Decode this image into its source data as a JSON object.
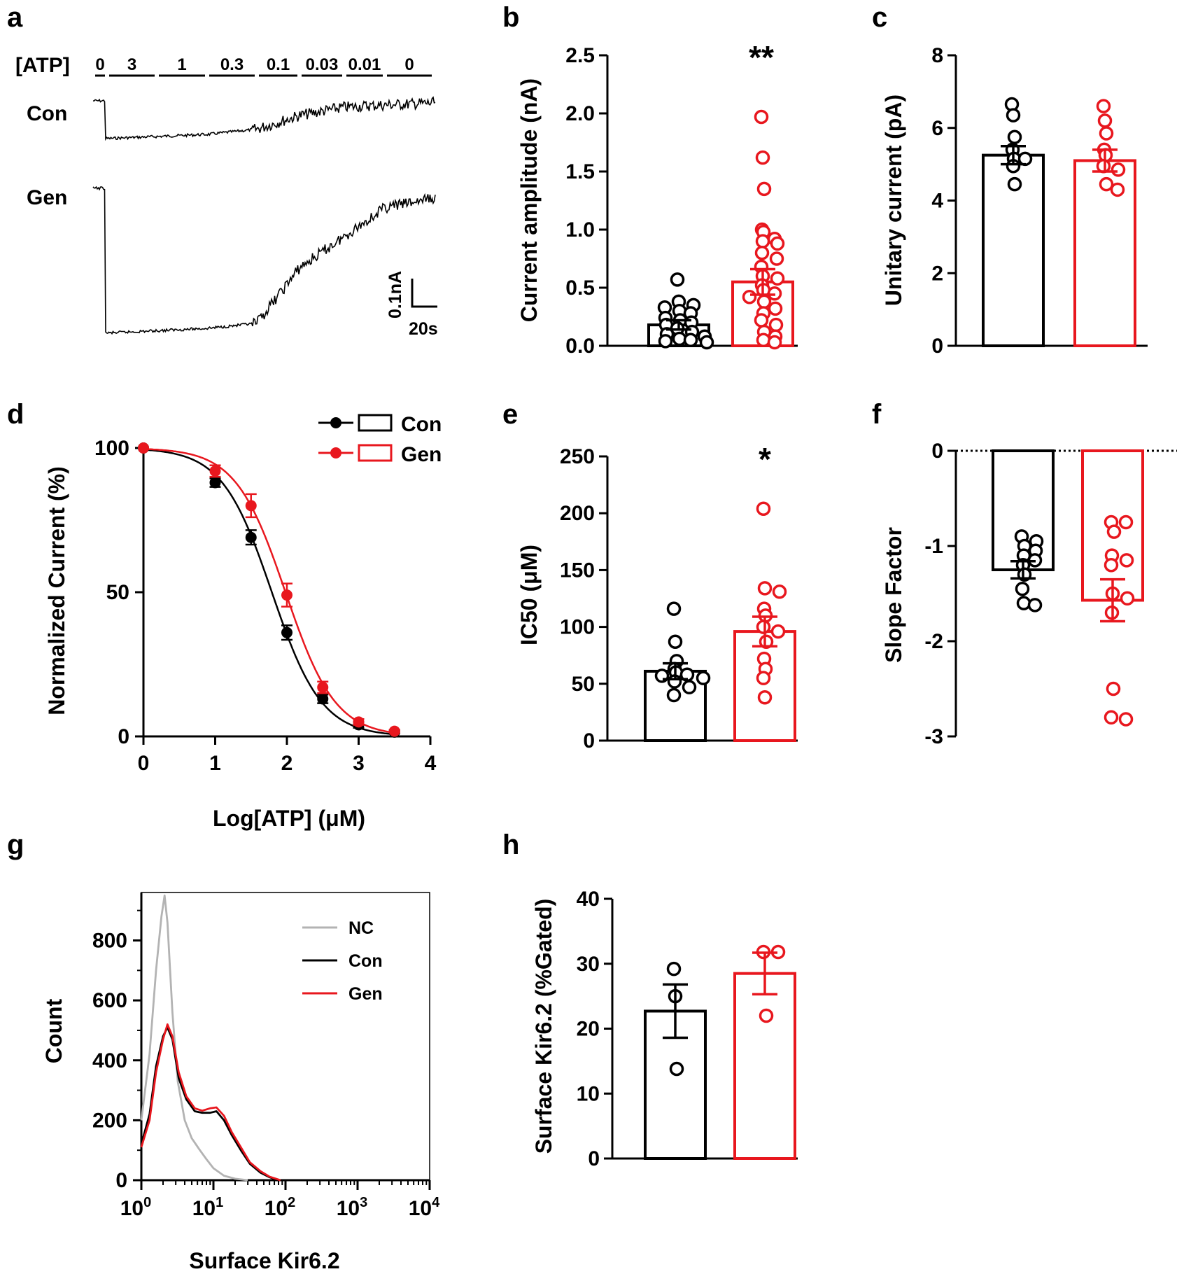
{
  "colors": {
    "con": "#000000",
    "gen": "#e8171e",
    "nc": "#b3b3b3"
  },
  "panel_letters": [
    "a",
    "b",
    "c",
    "d",
    "e",
    "f",
    "g",
    "h"
  ],
  "chart_data": [
    {
      "panel": "a",
      "type": "trace",
      "atp_label": "[ATP]",
      "atp_segments": [
        "0",
        "3",
        "1",
        "0.3",
        "0.1",
        "0.03",
        "0.01",
        "0"
      ],
      "traces": [
        {
          "name": "Con",
          "baseline_nA": 0.0,
          "steps_nA": [
            -0.02,
            -0.2,
            -0.19,
            -0.18,
            -0.155,
            -0.09,
            -0.05,
            -0.04,
            -0.03
          ]
        },
        {
          "name": "Gen",
          "baseline_nA": 0.0,
          "steps_nA": [
            -0.02,
            -0.62,
            -0.61,
            -0.6,
            -0.58,
            -0.35,
            -0.22,
            -0.1,
            -0.06
          ]
        }
      ],
      "scale_bar": {
        "current": "0.1nA",
        "time": "20s"
      }
    },
    {
      "panel": "b",
      "type": "bar",
      "ylabel": "Current amplitude (nA)",
      "ylim": [
        0,
        2.5
      ],
      "yticks": [
        "0.0",
        "0.5",
        "1.0",
        "1.5",
        "2.0",
        "2.5"
      ],
      "ytick_values": [
        0,
        0.5,
        1.0,
        1.5,
        2.0,
        2.5
      ],
      "significance": "**",
      "groups": [
        {
          "name": "Con",
          "mean": 0.18,
          "sem": 0.04,
          "points": [
            0.57,
            0.38,
            0.35,
            0.33,
            0.3,
            0.28,
            0.24,
            0.22,
            0.2,
            0.18,
            0.15,
            0.12,
            0.1,
            0.08,
            0.06,
            0.05,
            0.04,
            0.03
          ]
        },
        {
          "name": "Gen",
          "mean": 0.55,
          "sem": 0.11,
          "points": [
            1.97,
            1.62,
            1.35,
            1.0,
            0.98,
            0.92,
            0.9,
            0.88,
            0.8,
            0.75,
            0.68,
            0.6,
            0.58,
            0.52,
            0.48,
            0.45,
            0.42,
            0.38,
            0.32,
            0.28,
            0.22,
            0.18,
            0.12,
            0.08,
            0.05,
            0.03
          ]
        }
      ]
    },
    {
      "panel": "c",
      "type": "bar",
      "ylabel": "Unitary current (pA)",
      "ylim": [
        0,
        8
      ],
      "yticks": [
        "0",
        "2",
        "4",
        "6",
        "8"
      ],
      "ytick_values": [
        0,
        2,
        4,
        6,
        8
      ],
      "groups": [
        {
          "name": "Con",
          "mean": 5.25,
          "sem": 0.25,
          "points": [
            6.65,
            6.35,
            5.75,
            5.4,
            5.15,
            5.15,
            4.95,
            4.45
          ]
        },
        {
          "name": "Gen",
          "mean": 5.1,
          "sem": 0.3,
          "points": [
            6.6,
            6.2,
            5.85,
            5.4,
            5.25,
            4.95,
            4.85,
            4.45,
            4.3
          ]
        }
      ]
    },
    {
      "panel": "d",
      "type": "line",
      "xlabel": "Log[ATP] (μM)",
      "ylabel": "Normalized Current (%)",
      "xlim": [
        0,
        4
      ],
      "ylim": [
        0,
        100
      ],
      "xticks": [
        "0",
        "1",
        "2",
        "3",
        "4"
      ],
      "xtick_values": [
        0,
        1,
        2,
        3,
        4
      ],
      "yticks": [
        "0",
        "50",
        "100"
      ],
      "ytick_values": [
        0,
        50,
        100
      ],
      "legend": [
        "Con",
        "Gen"
      ],
      "series": [
        {
          "name": "Con",
          "x": [
            0,
            1,
            1.5,
            2,
            2.5,
            3,
            3.5
          ],
          "y": [
            100,
            88,
            69,
            36,
            13,
            4,
            1.5
          ],
          "err": [
            0,
            1.5,
            2.5,
            2.5,
            1.5,
            1,
            0.5
          ],
          "ic50_log": 1.79,
          "hill": 1.25
        },
        {
          "name": "Gen",
          "x": [
            0,
            1,
            1.5,
            2,
            2.5,
            3,
            3.5
          ],
          "y": [
            100,
            92,
            80,
            49,
            17,
            5,
            1.8
          ],
          "err": [
            0,
            2,
            4,
            4,
            2,
            1,
            0.5
          ],
          "ic50_log": 1.98,
          "hill": 1.25
        }
      ]
    },
    {
      "panel": "e",
      "type": "bar",
      "ylabel": "IC50 (μM)",
      "ylim": [
        0,
        250
      ],
      "yticks": [
        "0",
        "50",
        "100",
        "150",
        "200",
        "250"
      ],
      "ytick_values": [
        0,
        50,
        100,
        150,
        200,
        250
      ],
      "significance": "*",
      "groups": [
        {
          "name": "Con",
          "mean": 61,
          "sem": 7,
          "points": [
            116,
            87,
            70,
            63,
            60,
            58,
            57,
            55,
            52,
            47,
            40
          ]
        },
        {
          "name": "Gen",
          "mean": 96,
          "sem": 13,
          "points": [
            204,
            134,
            131,
            116,
            110,
            100,
            96,
            87,
            72,
            63,
            55,
            38
          ]
        }
      ]
    },
    {
      "panel": "f",
      "type": "bar",
      "ylabel": "Slope Factor",
      "ylim": [
        -3,
        0
      ],
      "yticks": [
        "-3",
        "-2",
        "-1",
        "0"
      ],
      "ytick_values": [
        -3,
        -2,
        -1,
        0
      ],
      "groups": [
        {
          "name": "Con",
          "mean": -1.25,
          "sem": 0.09,
          "points": [
            -0.9,
            -0.95,
            -1.0,
            -1.05,
            -1.1,
            -1.15,
            -1.2,
            -1.3,
            -1.45,
            -1.6,
            -1.62
          ]
        },
        {
          "name": "Gen",
          "mean": -1.57,
          "sem": 0.22,
          "points": [
            -0.75,
            -0.75,
            -0.85,
            -1.1,
            -1.15,
            -1.2,
            -1.5,
            -1.55,
            -1.7,
            -2.5,
            -2.8,
            -2.82
          ]
        }
      ]
    },
    {
      "panel": "g",
      "type": "area",
      "xlabel": "Surface Kir6.2",
      "ylabel": "Count",
      "xscale": "log",
      "xlim": [
        1,
        10000
      ],
      "ylim": [
        0,
        960
      ],
      "xtick_base": "10",
      "xtick_exponents": [
        "0",
        "1",
        "2",
        "3",
        "4"
      ],
      "xtick_values": [
        1,
        10,
        100,
        1000,
        10000
      ],
      "yticks": [
        "0",
        "200",
        "400",
        "600",
        "800"
      ],
      "ytick_values": [
        0,
        200,
        400,
        600,
        800
      ],
      "legend": [
        "NC",
        "Con",
        "Gen"
      ],
      "series": [
        {
          "name": "NC",
          "x": [
            1,
            1.3,
            1.6,
            1.9,
            2.1,
            2.3,
            2.7,
            3.2,
            4,
            5,
            6.5,
            8,
            10,
            14,
            20,
            30
          ],
          "y": [
            200,
            420,
            700,
            880,
            950,
            860,
            560,
            330,
            200,
            140,
            100,
            70,
            40,
            15,
            5,
            0
          ]
        },
        {
          "name": "Con",
          "x": [
            1,
            1.3,
            1.6,
            2,
            2.3,
            2.7,
            3.3,
            4.2,
            5.5,
            7,
            9,
            11,
            14,
            18,
            24,
            32,
            45,
            60,
            80
          ],
          "y": [
            120,
            220,
            380,
            480,
            510,
            470,
            340,
            270,
            230,
            225,
            225,
            230,
            200,
            150,
            100,
            55,
            25,
            10,
            0
          ]
        },
        {
          "name": "Gen",
          "x": [
            1,
            1.3,
            1.6,
            2,
            2.3,
            2.7,
            3.3,
            4.2,
            5.5,
            7,
            9,
            11,
            14,
            18,
            24,
            32,
            45,
            60,
            85
          ],
          "y": [
            110,
            200,
            360,
            470,
            520,
            480,
            360,
            280,
            240,
            232,
            240,
            243,
            215,
            160,
            110,
            60,
            30,
            12,
            0
          ]
        }
      ]
    },
    {
      "panel": "h",
      "type": "bar",
      "ylabel": "Surface Kir6.2 (%Gated)",
      "ylim": [
        0,
        40
      ],
      "yticks": [
        "0",
        "10",
        "20",
        "30",
        "40"
      ],
      "ytick_values": [
        0,
        10,
        20,
        30,
        40
      ],
      "groups": [
        {
          "name": "Con",
          "mean": 22.7,
          "sem": 4.1,
          "points": [
            29.2,
            25.0,
            13.8
          ]
        },
        {
          "name": "Gen",
          "mean": 28.5,
          "sem": 3.2,
          "points": [
            31.8,
            31.8,
            22.0
          ]
        }
      ]
    }
  ]
}
